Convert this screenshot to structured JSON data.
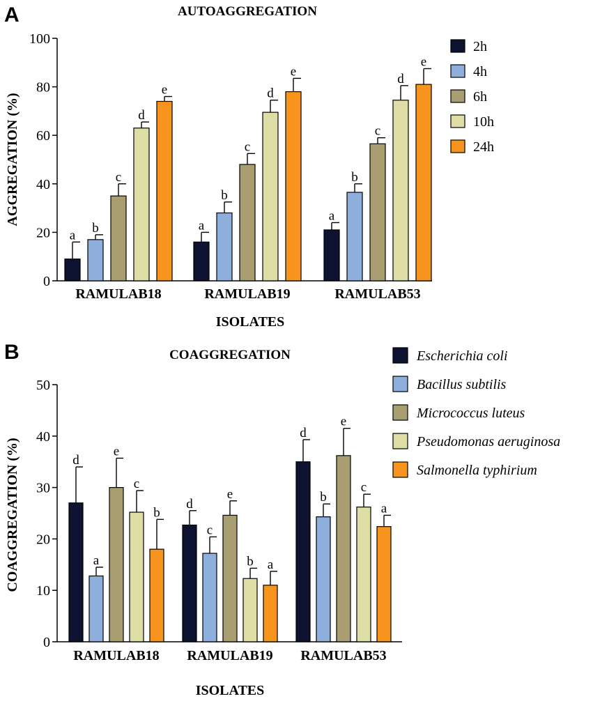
{
  "chart_data": [
    {
      "type": "bar",
      "panel_letter": "A",
      "title": "AUTOAGGREGATION",
      "xlabel": "ISOLATES",
      "ylabel": "AGGREGATION (%)",
      "ylim": [
        0,
        100
      ],
      "yticks": [
        0,
        20,
        40,
        60,
        80,
        100
      ],
      "categories": [
        "RAMULAB18",
        "RAMULAB19",
        "RAMULAB53"
      ],
      "legend_position": "top-right",
      "legend_italic": false,
      "series": [
        {
          "name": "2h",
          "color": "#0d1330",
          "values": [
            9,
            16,
            21
          ],
          "errors": [
            7,
            4,
            3
          ],
          "letters": [
            "a",
            "a",
            "a"
          ]
        },
        {
          "name": "4h",
          "color": "#8eaedb",
          "values": [
            17,
            28,
            36.5
          ],
          "errors": [
            2,
            4.5,
            3.5
          ],
          "letters": [
            "b",
            "b",
            "b"
          ]
        },
        {
          "name": "6h",
          "color": "#a89e72",
          "values": [
            35,
            48,
            56.5
          ],
          "errors": [
            5,
            4.5,
            2.5
          ],
          "letters": [
            "c",
            "c",
            "c"
          ]
        },
        {
          "name": "10h",
          "color": "#dedda6",
          "values": [
            63,
            69.5,
            74.5
          ],
          "errors": [
            2.5,
            5,
            6
          ],
          "letters": [
            "d",
            "d",
            "d"
          ]
        },
        {
          "name": "24h",
          "color": "#f7941d",
          "values": [
            74,
            78,
            81
          ],
          "errors": [
            2,
            5.5,
            6.5
          ],
          "letters": [
            "e",
            "e",
            "e"
          ]
        }
      ]
    },
    {
      "type": "bar",
      "panel_letter": "B",
      "title": "COAGGREGATION",
      "xlabel": "ISOLATES",
      "ylabel": "COAGGREGATION (%)",
      "ylim": [
        0,
        50
      ],
      "yticks": [
        0,
        10,
        20,
        30,
        40,
        50
      ],
      "categories": [
        "RAMULAB18",
        "RAMULAB19",
        "RAMULAB53"
      ],
      "legend_position": "top-right",
      "legend_italic": true,
      "series": [
        {
          "name": "Escherichia coli",
          "color": "#0d1330",
          "values": [
            27,
            22.7,
            35
          ],
          "errors": [
            7,
            2.8,
            4.3
          ],
          "letters": [
            "d",
            "d",
            "d"
          ]
        },
        {
          "name": "Bacillus subtilis",
          "color": "#8eaedb",
          "values": [
            12.8,
            17.2,
            24.3
          ],
          "errors": [
            1.7,
            3.2,
            2.5
          ],
          "letters": [
            "a",
            "c",
            "b"
          ]
        },
        {
          "name": "Micrococcus luteus",
          "color": "#a89e72",
          "values": [
            30,
            24.6,
            36.2
          ],
          "errors": [
            5.7,
            2.8,
            5.3
          ],
          "letters": [
            "e",
            "e",
            "e"
          ]
        },
        {
          "name": "Pseudomonas aeruginosa",
          "color": "#dedda6",
          "values": [
            25.2,
            12.3,
            26.2
          ],
          "errors": [
            4.2,
            2,
            2.5
          ],
          "letters": [
            "c",
            "b",
            "c"
          ]
        },
        {
          "name": "Salmonella typhirium",
          "color": "#f7941d",
          "values": [
            18,
            11,
            22.4
          ],
          "errors": [
            5.8,
            2.7,
            2.2
          ],
          "letters": [
            "b",
            "a",
            "a"
          ]
        }
      ]
    }
  ]
}
